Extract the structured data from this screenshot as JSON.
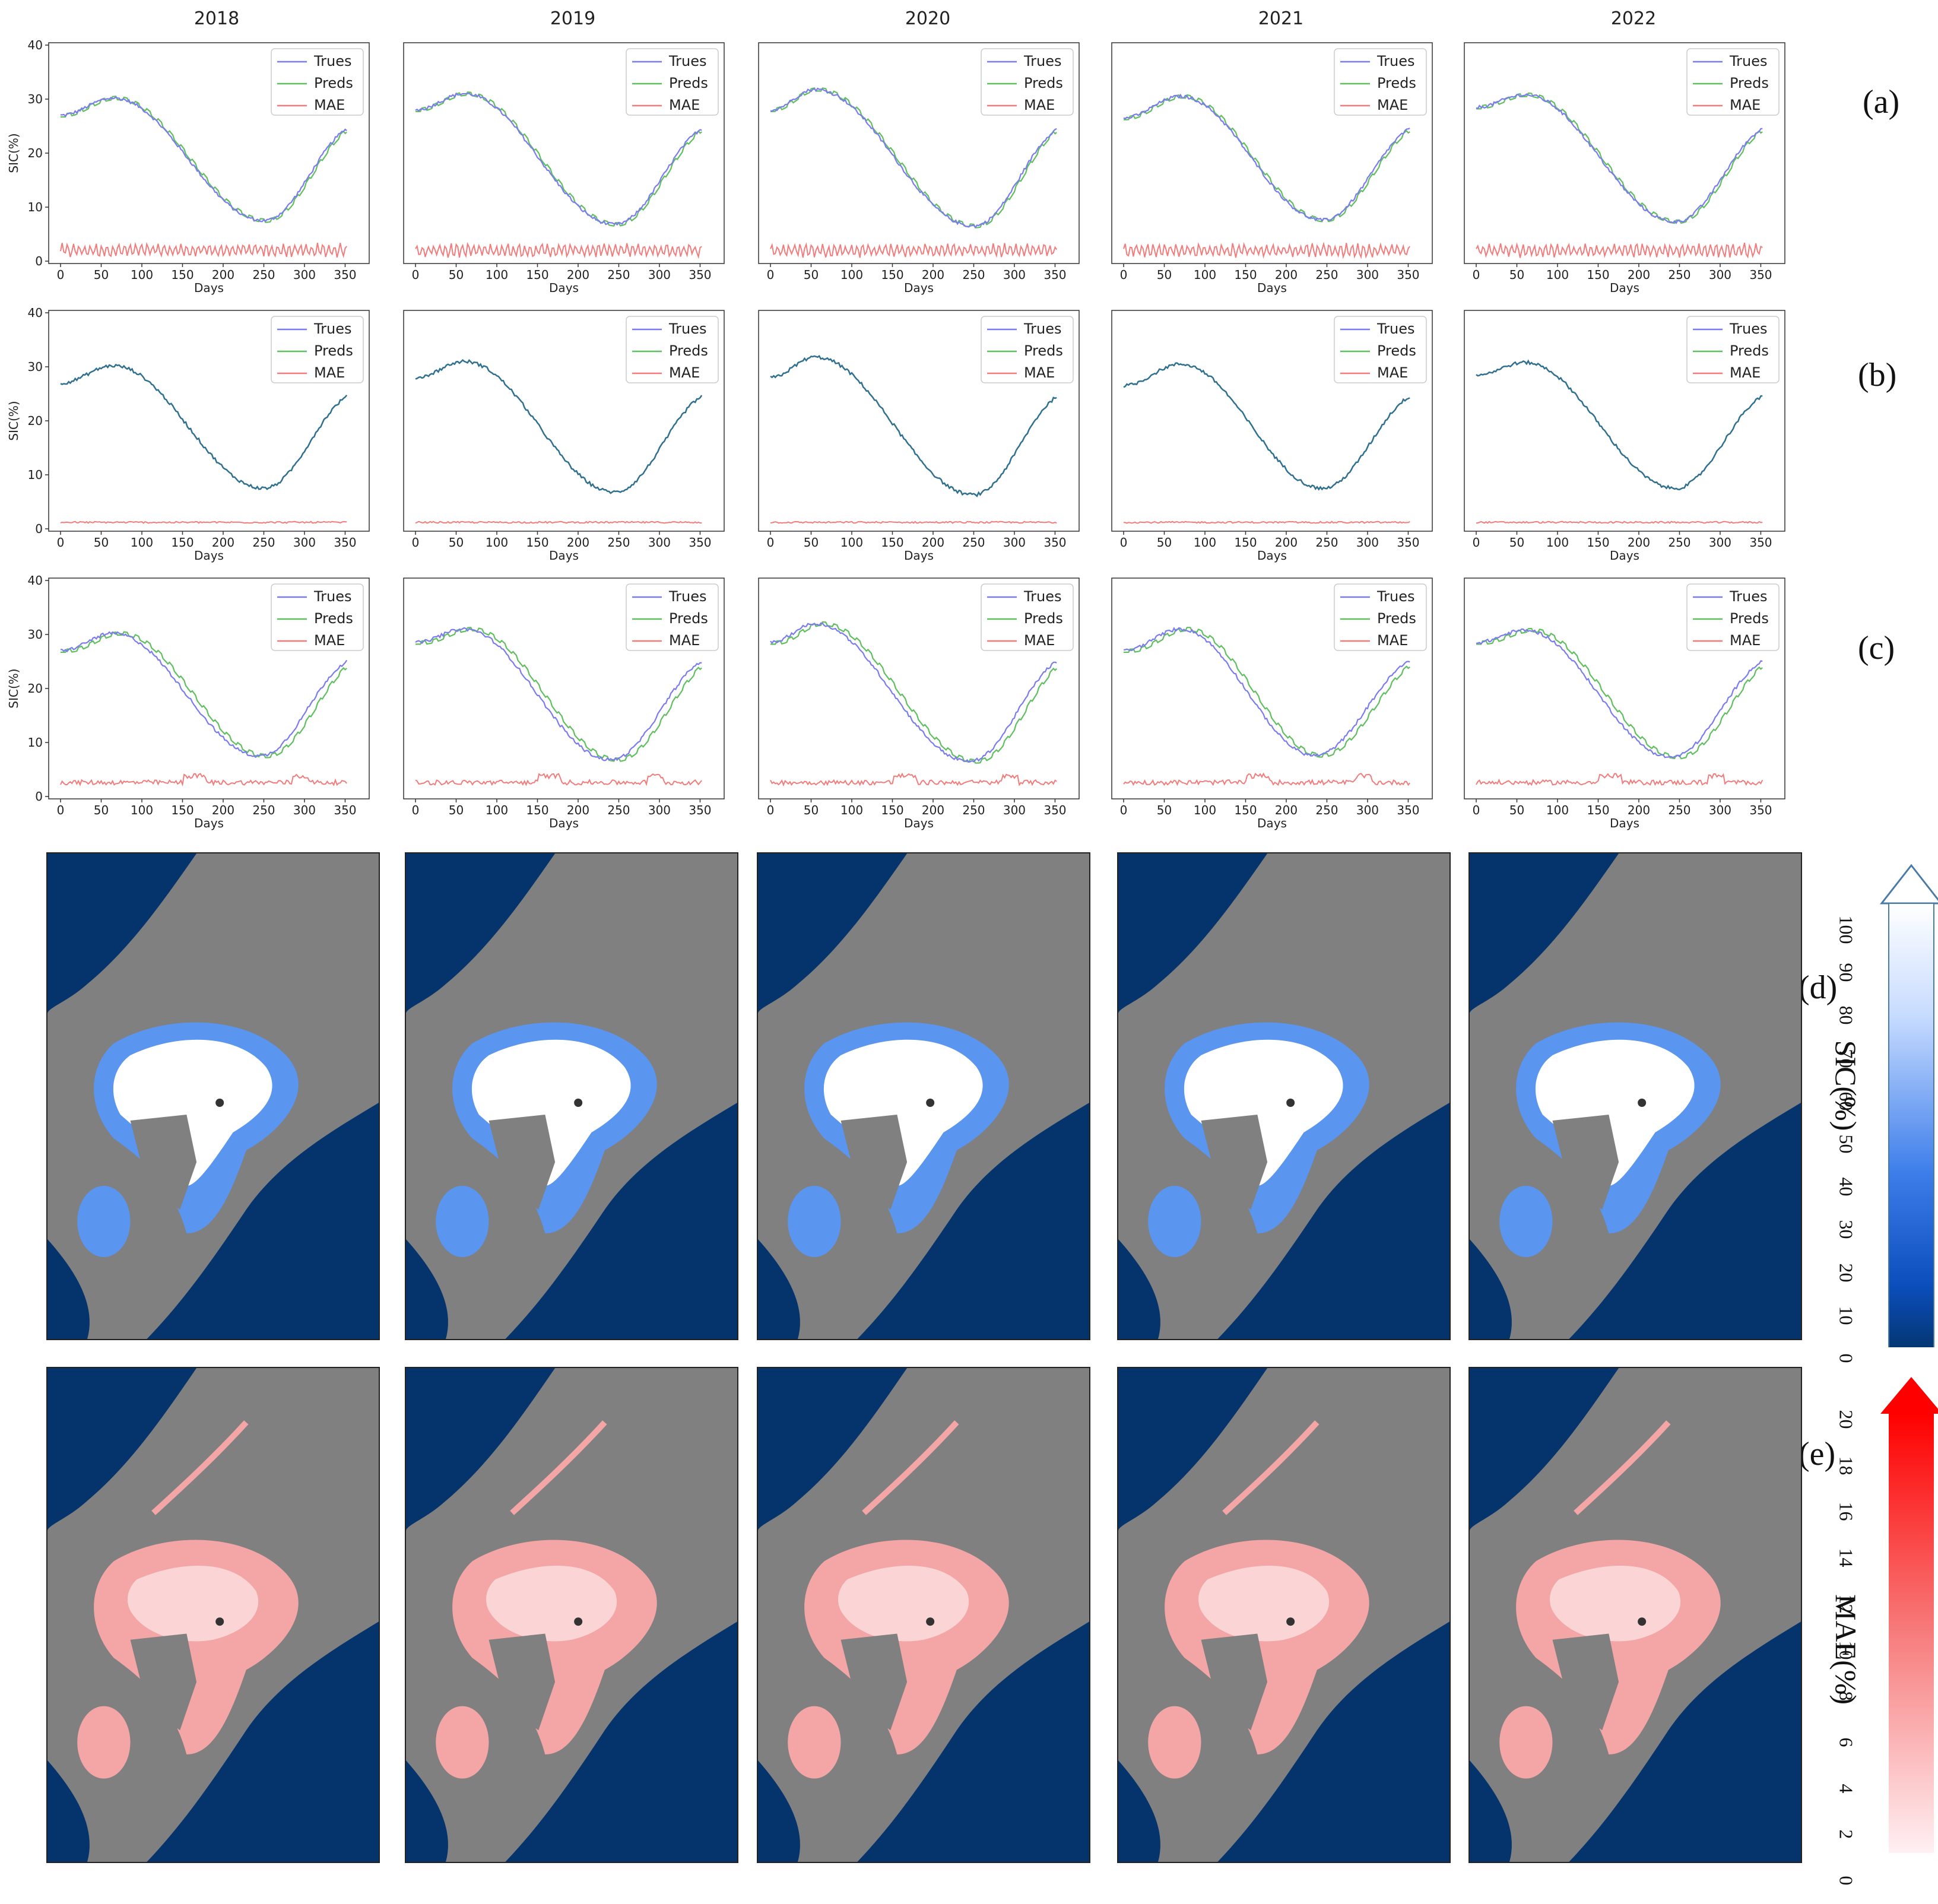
{
  "years": [
    "2018",
    "2019",
    "2020",
    "2021",
    "2022"
  ],
  "row_labels": [
    "(a)",
    "(b)",
    "(c)",
    "(d)",
    "(e)"
  ],
  "legend": [
    "Trues",
    "Preds",
    "MAE"
  ],
  "colors": {
    "trues": "#7b7bf0",
    "preds": "#5fbf5f",
    "mae": "#f27c7c",
    "combined": "#2f6f8f",
    "ocean": "#04346b",
    "land": "#808080"
  },
  "axes": {
    "xlabel": "Days",
    "ylabel": "SIC(%)",
    "xticks": [
      "0",
      "50",
      "100",
      "150",
      "200",
      "250",
      "300",
      "350"
    ],
    "yticks": [
      "0",
      "10",
      "20",
      "30",
      "40"
    ]
  },
  "colorbars": {
    "sic": {
      "title": "SIC(%)",
      "ticks": [
        "100",
        "90",
        "80",
        "70",
        "60",
        "50",
        "40",
        "30",
        "20",
        "10",
        "0"
      ]
    },
    "mae": {
      "title": "MAE(%)",
      "ticks": [
        "20",
        "18",
        "16",
        "14",
        "12",
        "10",
        "8",
        "6",
        "4",
        "2",
        "0"
      ]
    }
  },
  "chart_data": [
    {
      "type": "line",
      "row": "(a)",
      "xlim": [
        0,
        365
      ],
      "ylim": [
        0,
        40
      ],
      "trues": {
        "2018": {
          "start": 27,
          "peak": 30.2,
          "peak_day": 65,
          "min": 7.5,
          "min_day": 250,
          "end": 25
        },
        "2019": {
          "start": 28,
          "peak": 31,
          "peak_day": 60,
          "min": 6.8,
          "min_day": 245,
          "end": 25
        },
        "2020": {
          "start": 28,
          "peak": 31.8,
          "peak_day": 55,
          "min": 6.5,
          "min_day": 250,
          "end": 25
        },
        "2021": {
          "start": 26.5,
          "peak": 30.5,
          "peak_day": 70,
          "min": 7.6,
          "min_day": 245,
          "end": 25
        },
        "2022": {
          "start": 28.5,
          "peak": 30.8,
          "peak_day": 60,
          "min": 7.3,
          "min_day": 245,
          "end": 25
        }
      },
      "mae_mean": 2.0,
      "mae_amp": 1.0,
      "pred_lag": 3
    },
    {
      "type": "line",
      "row": "(b)",
      "xlim": [
        0,
        365
      ],
      "ylim": [
        0,
        40
      ],
      "trues": {
        "2018": {
          "start": 27,
          "peak": 30.2,
          "peak_day": 65,
          "min": 7.5,
          "min_day": 250,
          "end": 25
        },
        "2019": {
          "start": 28,
          "peak": 31,
          "peak_day": 60,
          "min": 6.8,
          "min_day": 245,
          "end": 25
        },
        "2020": {
          "start": 28,
          "peak": 31.8,
          "peak_day": 55,
          "min": 6.3,
          "min_day": 250,
          "end": 25
        },
        "2021": {
          "start": 26.5,
          "peak": 30.5,
          "peak_day": 70,
          "min": 7.5,
          "min_day": 245,
          "end": 25
        },
        "2022": {
          "start": 28.5,
          "peak": 30.8,
          "peak_day": 60,
          "min": 7.5,
          "min_day": 245,
          "end": 25
        }
      },
      "mae_mean": 1.2,
      "mae_amp": 0.2,
      "pred_lag": 0
    },
    {
      "type": "line",
      "row": "(c)",
      "xlim": [
        0,
        365
      ],
      "ylim": [
        0,
        40
      ],
      "trues": {
        "2018": {
          "start": 27,
          "peak": 30.2,
          "peak_day": 65,
          "min": 7.5,
          "min_day": 245,
          "end": 25.5
        },
        "2019": {
          "start": 28.5,
          "peak": 31,
          "peak_day": 60,
          "min": 6.8,
          "min_day": 240,
          "end": 25.5
        },
        "2020": {
          "start": 28.5,
          "peak": 32,
          "peak_day": 55,
          "min": 6.5,
          "min_day": 245,
          "end": 25.5
        },
        "2021": {
          "start": 27,
          "peak": 31,
          "peak_day": 70,
          "min": 7.6,
          "min_day": 235,
          "end": 25.5
        },
        "2022": {
          "start": 28.5,
          "peak": 30.8,
          "peak_day": 60,
          "min": 7.3,
          "min_day": 240,
          "end": 25.5
        }
      },
      "mae_mean": 2.6,
      "mae_amp": 0.6,
      "pred_lag": 9
    }
  ]
}
